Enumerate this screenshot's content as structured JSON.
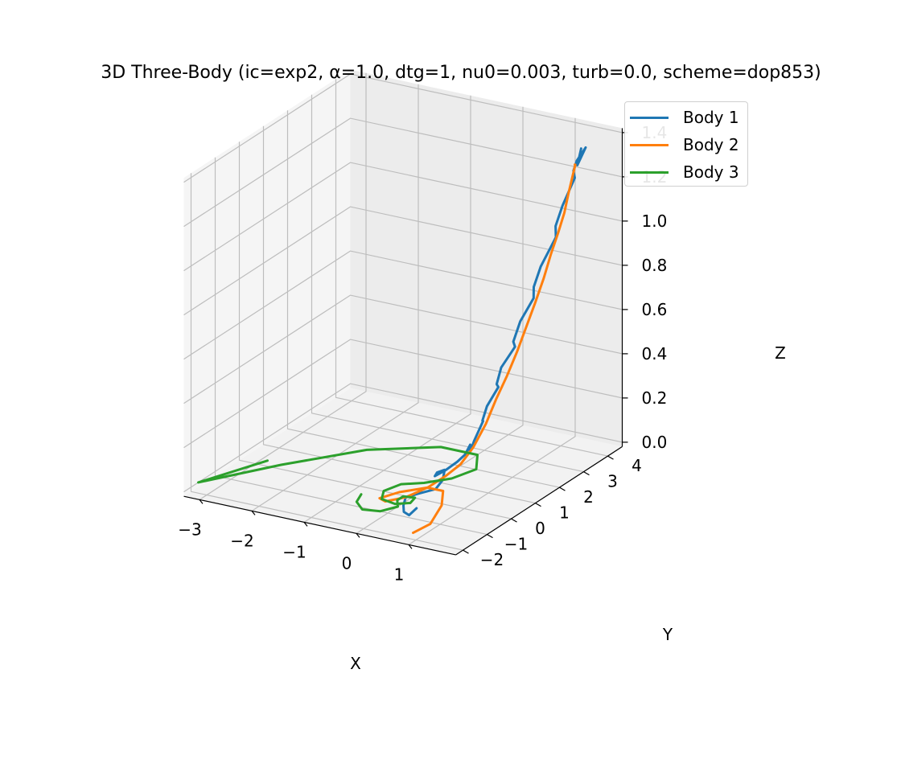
{
  "chart_data": {
    "type": "line",
    "projection": "3d",
    "title": "3D Three-Body (ic=exp2, α=1.0, dtg=1, nu0=0.003, turb=0.0, scheme=dop853)",
    "xlabel": "X",
    "ylabel": "Y",
    "zlabel": "Z",
    "xticks": [
      "−3",
      "−2",
      "−1",
      "0",
      "1"
    ],
    "yticks": [
      "−2",
      "−1",
      "0",
      "1",
      "2",
      "3",
      "4"
    ],
    "zticks": [
      "0.0",
      "0.2",
      "0.4",
      "0.6",
      "0.8",
      "1.0",
      "1.2",
      "1.4"
    ],
    "xlim": [
      -3.3,
      1.9
    ],
    "ylim": [
      -2.3,
      4.6
    ],
    "zlim": [
      -0.02,
      1.42
    ],
    "grid": true,
    "legend_position": "upper-right",
    "series": [
      {
        "name": "Body 1",
        "color": "#1f77b4",
        "points": [
          [
            0.55,
            -1.0,
            0.03
          ],
          [
            0.5,
            -1.2,
            0.01
          ],
          [
            0.4,
            -1.2,
            0.02
          ],
          [
            0.3,
            -1.0,
            0.03
          ],
          [
            0.25,
            -0.8,
            0.05
          ],
          [
            0.35,
            -0.5,
            0.05
          ],
          [
            0.5,
            -0.1,
            0.05
          ],
          [
            0.45,
            0.3,
            0.06
          ],
          [
            0.35,
            0.6,
            0.08
          ],
          [
            0.25,
            0.5,
            0.07
          ],
          [
            0.3,
            0.3,
            0.07
          ],
          [
            0.42,
            0.5,
            0.09
          ],
          [
            0.5,
            0.8,
            0.11
          ],
          [
            0.6,
            0.9,
            0.14
          ],
          [
            0.7,
            0.9,
            0.19
          ],
          [
            0.78,
            0.7,
            0.17
          ],
          [
            0.82,
            0.8,
            0.22
          ],
          [
            0.9,
            1.0,
            0.3
          ],
          [
            0.98,
            0.8,
            0.32
          ],
          [
            1.02,
            0.9,
            0.38
          ],
          [
            1.1,
            1.2,
            0.45
          ],
          [
            1.16,
            1.0,
            0.48
          ],
          [
            1.2,
            1.1,
            0.55
          ],
          [
            1.28,
            1.5,
            0.62
          ],
          [
            1.34,
            1.3,
            0.66
          ],
          [
            1.38,
            1.5,
            0.74
          ],
          [
            1.45,
            1.9,
            0.82
          ],
          [
            1.5,
            1.8,
            0.88
          ],
          [
            1.54,
            2.0,
            0.96
          ],
          [
            1.6,
            2.5,
            1.06
          ],
          [
            1.64,
            2.4,
            1.12
          ],
          [
            1.68,
            2.6,
            1.2
          ],
          [
            1.73,
            3.0,
            1.3
          ],
          [
            1.75,
            2.9,
            1.34
          ],
          [
            1.77,
            3.0,
            1.38
          ],
          [
            1.8,
            3.3,
            1.42
          ],
          [
            1.78,
            3.0,
            1.36
          ],
          [
            1.76,
            3.2,
            1.42
          ]
        ]
      },
      {
        "name": "Body 2",
        "color": "#ff7f0e",
        "points": [
          [
            0.9,
            -1.9,
            0.0
          ],
          [
            0.95,
            -1.3,
            0.0
          ],
          [
            0.8,
            -0.5,
            0.02
          ],
          [
            0.55,
            0.1,
            0.03
          ],
          [
            0.2,
            0.2,
            0.02
          ],
          [
            -0.15,
            -0.2,
            0.01
          ],
          [
            -0.25,
            -0.8,
            0.02
          ],
          [
            0.0,
            -1.1,
            0.04
          ],
          [
            0.3,
            -0.9,
            0.06
          ],
          [
            0.5,
            -0.4,
            0.08
          ],
          [
            0.6,
            0.1,
            0.1
          ],
          [
            0.7,
            0.5,
            0.13
          ],
          [
            0.85,
            0.7,
            0.2
          ],
          [
            1.0,
            0.9,
            0.3
          ],
          [
            1.1,
            1.1,
            0.4
          ],
          [
            1.22,
            1.3,
            0.5
          ],
          [
            1.32,
            1.5,
            0.6
          ],
          [
            1.4,
            1.7,
            0.7
          ],
          [
            1.48,
            1.9,
            0.8
          ],
          [
            1.55,
            2.1,
            0.9
          ],
          [
            1.6,
            2.3,
            1.0
          ],
          [
            1.64,
            2.5,
            1.08
          ],
          [
            1.67,
            2.7,
            1.16
          ],
          [
            1.7,
            2.8,
            1.24
          ],
          [
            1.72,
            2.9,
            1.3
          ],
          [
            1.74,
            3.0,
            1.36
          ],
          [
            1.73,
            3.0,
            1.36
          ]
        ]
      },
      {
        "name": "Body 3",
        "color": "#2ca02c",
        "points": [
          [
            -2.3,
            -1.0,
            0.1
          ],
          [
            -3.3,
            -1.7,
            0.0
          ],
          [
            -2.5,
            0.0,
            0.0
          ],
          [
            -1.6,
            1.6,
            0.0
          ],
          [
            -0.6,
            2.5,
            0.0
          ],
          [
            0.1,
            2.5,
            0.0
          ],
          [
            0.4,
            1.8,
            0.0
          ],
          [
            0.3,
            1.0,
            0.01
          ],
          [
            0.0,
            0.5,
            0.01
          ],
          [
            -0.3,
            0.2,
            0.01
          ],
          [
            -0.4,
            -0.3,
            0.01
          ],
          [
            -0.3,
            -0.6,
            0.0
          ],
          [
            0.0,
            -0.7,
            0.0
          ],
          [
            0.2,
            -0.5,
            0.0
          ],
          [
            0.15,
            -0.2,
            0.0
          ],
          [
            -0.05,
            -0.25,
            0.0
          ],
          [
            -0.05,
            -0.5,
            0.0
          ],
          [
            0.1,
            -0.8,
            0.0
          ],
          [
            -0.05,
            -1.2,
            0.0
          ],
          [
            -0.35,
            -1.3,
            0.0
          ],
          [
            -0.55,
            -1.1,
            0.01
          ],
          [
            -0.6,
            -0.8,
            0.02
          ]
        ]
      }
    ]
  }
}
